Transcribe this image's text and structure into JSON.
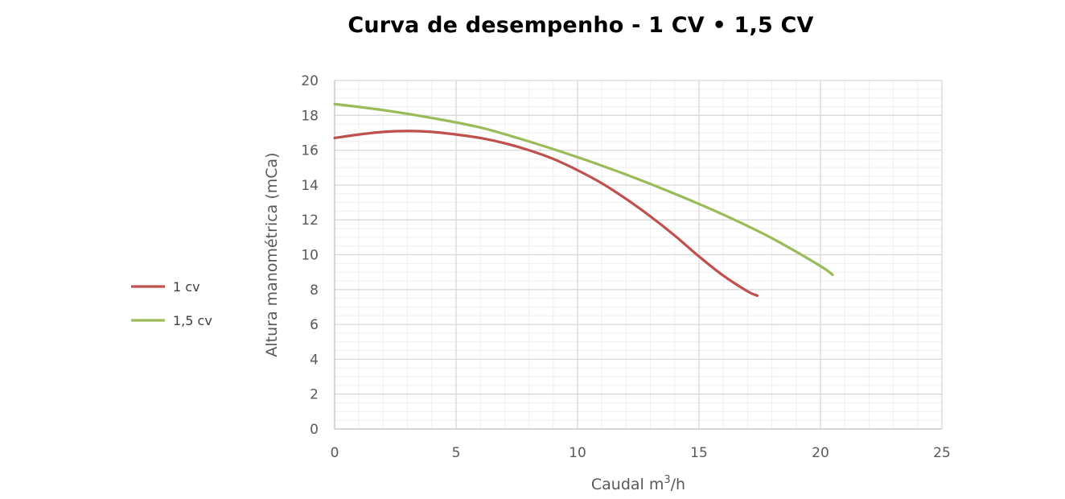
{
  "chart_data": {
    "type": "line",
    "title": "Curva de desempenho - 1 CV • 1,5 CV",
    "xlabel_base": "Caudal m",
    "xlabel_sup": "3",
    "xlabel_tail": "/h",
    "ylabel": "Altura manométrica (mCa)",
    "xlim": [
      0,
      25
    ],
    "ylim": [
      0,
      20
    ],
    "x_ticks": [
      "0",
      "5",
      "10",
      "15",
      "20",
      "25"
    ],
    "y_ticks": [
      "0",
      "2",
      "4",
      "6",
      "8",
      "10",
      "12",
      "14",
      "16",
      "18",
      "20"
    ],
    "grid": true,
    "legend_position": "left",
    "series": [
      {
        "name": "1 cv",
        "color": "#C0504D",
        "x": [
          0,
          1,
          2,
          3,
          4,
          5,
          6,
          7,
          8,
          9,
          10,
          11,
          12,
          13,
          14,
          15,
          16,
          17,
          17.4
        ],
        "y": [
          16.7,
          16.9,
          17.05,
          17.1,
          17.05,
          16.9,
          16.7,
          16.4,
          16.0,
          15.5,
          14.85,
          14.1,
          13.2,
          12.2,
          11.1,
          9.9,
          8.8,
          7.9,
          7.65
        ]
      },
      {
        "name": "1,5 cv",
        "color": "#9BBB59",
        "x": [
          0,
          2,
          4,
          6,
          8,
          10,
          12,
          14,
          16,
          18,
          20,
          20.5
        ],
        "y": [
          18.65,
          18.3,
          17.85,
          17.3,
          16.5,
          15.6,
          14.6,
          13.5,
          12.3,
          10.95,
          9.35,
          8.85
        ]
      }
    ]
  }
}
